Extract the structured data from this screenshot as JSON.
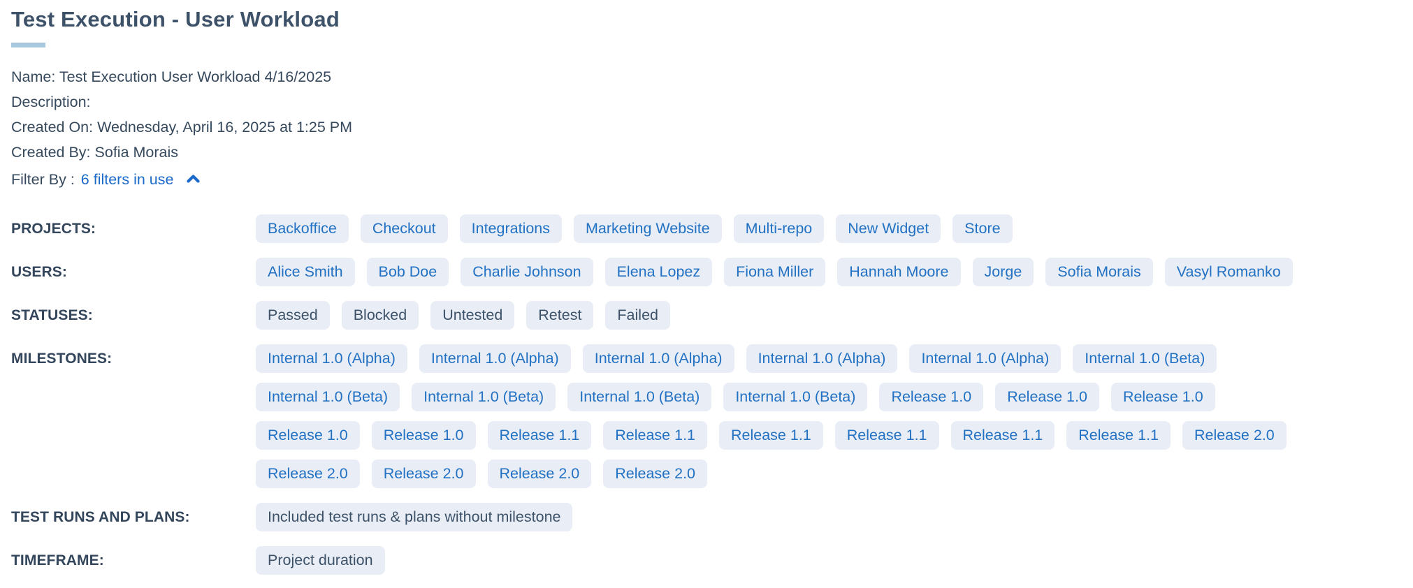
{
  "colors": {
    "text_dark": "#36495c",
    "label_dark": "#33465c",
    "title_dark": "#3d5269",
    "link_blue": "#1b6ac9",
    "chip_bg": "#e9eef6",
    "chip_blue": "#2271c3",
    "underline": "#a9c8de"
  },
  "page": {
    "title": "Test Execution - User Workload"
  },
  "meta": {
    "lines": [
      {
        "label": "Name:",
        "value": "Test Execution User Workload 4/16/2025"
      },
      {
        "label": "Description:",
        "value": ""
      },
      {
        "label": "Created On:",
        "value": "Wednesday, April 16, 2025 at 1:25 PM"
      },
      {
        "label": "Created By:",
        "value": "Sofia Morais"
      }
    ]
  },
  "filter_by": {
    "label": "Filter By :",
    "link": "6 filters in use",
    "collapse_icon": "chevron-up"
  },
  "filters": {
    "projects": {
      "label": "PROJECTS:",
      "items": [
        "Backoffice",
        "Checkout",
        "Integrations",
        "Marketing Website",
        "Multi-repo",
        "New Widget",
        "Store"
      ]
    },
    "users": {
      "label": "USERS:",
      "items": [
        "Alice Smith",
        "Bob Doe",
        "Charlie Johnson",
        "Elena Lopez",
        "Fiona Miller",
        "Hannah Moore",
        "Jorge",
        "Sofia Morais",
        "Vasyl Romanko"
      ]
    },
    "statuses": {
      "label": "STATUSES:",
      "items": [
        "Passed",
        "Blocked",
        "Untested",
        "Retest",
        "Failed"
      ]
    },
    "milestones": {
      "label": "MILESTONES:",
      "rows": [
        [
          "Internal 1.0 (Alpha)",
          "Internal 1.0 (Alpha)",
          "Internal 1.0 (Alpha)",
          "Internal 1.0 (Alpha)",
          "Internal 1.0 (Alpha)",
          "Internal 1.0 (Beta)"
        ],
        [
          "Internal 1.0 (Beta)",
          "Internal 1.0 (Beta)",
          "Internal 1.0 (Beta)",
          "Internal 1.0 (Beta)",
          "Release 1.0",
          "Release 1.0",
          "Release 1.0"
        ],
        [
          "Release 1.0",
          "Release 1.0",
          "Release 1.1",
          "Release 1.1",
          "Release 1.1",
          "Release 1.1",
          "Release 1.1",
          "Release 1.1",
          "Release 2.0"
        ],
        [
          "Release 2.0",
          "Release 2.0",
          "Release 2.0",
          "Release 2.0"
        ]
      ]
    },
    "test_runs_and_plans": {
      "label": "TEST RUNS AND PLANS:",
      "items": [
        "Included test runs & plans without milestone"
      ]
    },
    "timeframe": {
      "label": "TIMEFRAME:",
      "items": [
        "Project duration"
      ]
    }
  }
}
